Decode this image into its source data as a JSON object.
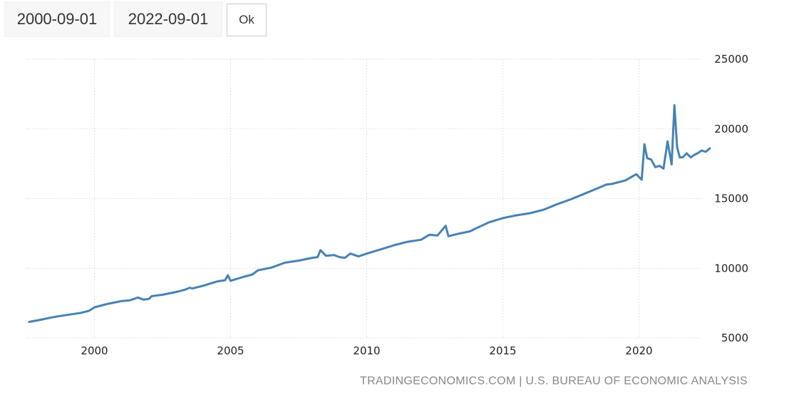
{
  "controls": {
    "start_date": "2000-09-01",
    "end_date": "2022-09-01",
    "ok_label": "Ok"
  },
  "source_text": "TRADINGECONOMICS.COM | U.S. BUREAU OF ECONOMIC ANALYSIS",
  "colors": {
    "line": "#4682b4",
    "grid": "#e2e2e2"
  },
  "chart_data": {
    "type": "line",
    "title": "",
    "xlabel": "",
    "ylabel": "",
    "y_axis_position": "right",
    "grid": true,
    "xlim": [
      1997.5,
      2022.7
    ],
    "ylim": [
      5000,
      25000
    ],
    "x_ticks": [
      2000,
      2005,
      2010,
      2015,
      2020
    ],
    "y_ticks": [
      25000,
      20000,
      15000,
      10000,
      5000
    ],
    "series": [
      {
        "x": [
          1997.6,
          1998.0,
          1998.5,
          1999.0,
          1999.5,
          1999.8,
          2000.0,
          2000.5,
          2001.0,
          2001.3,
          2001.6,
          2001.8,
          2002.0,
          2002.1,
          2002.5,
          2003.0,
          2003.3,
          2003.5,
          2003.6,
          2004.0,
          2004.5,
          2004.8,
          2004.9,
          2005.0,
          2005.5,
          2005.8,
          2006.0,
          2006.5,
          2007.0,
          2007.5,
          2008.0,
          2008.2,
          2008.3,
          2008.5,
          2008.8,
          2009.0,
          2009.2,
          2009.4,
          2009.7,
          2010.0,
          2010.5,
          2011.0,
          2011.5,
          2012.0,
          2012.3,
          2012.6,
          2012.9,
          2013.0,
          2013.3,
          2013.8,
          2014.0,
          2014.5,
          2015.0,
          2015.5,
          2016.0,
          2016.5,
          2017.0,
          2017.5,
          2018.0,
          2018.5,
          2018.8,
          2019.0,
          2019.5,
          2019.9,
          2020.1,
          2020.2,
          2020.3,
          2020.45,
          2020.6,
          2020.75,
          2020.9,
          2021.05,
          2021.2,
          2021.3,
          2021.4,
          2021.45,
          2021.5,
          2021.6,
          2021.75,
          2021.9,
          2022.0,
          2022.15,
          2022.3,
          2022.45,
          2022.6
        ],
        "y": [
          6150,
          6300,
          6500,
          6650,
          6800,
          6950,
          7200,
          7450,
          7650,
          7700,
          7900,
          7750,
          7800,
          8000,
          8100,
          8300,
          8450,
          8600,
          8550,
          8750,
          9050,
          9150,
          9500,
          9100,
          9400,
          9550,
          9850,
          10050,
          10400,
          10550,
          10750,
          10800,
          11300,
          10900,
          10950,
          10800,
          10750,
          11050,
          10850,
          11050,
          11350,
          11650,
          11900,
          12050,
          12400,
          12350,
          13050,
          12300,
          12450,
          12650,
          12850,
          13300,
          13600,
          13800,
          13950,
          14200,
          14600,
          14950,
          15350,
          15750,
          16000,
          16050,
          16300,
          16750,
          16350,
          18900,
          17900,
          17800,
          17250,
          17350,
          17150,
          19100,
          17450,
          21700,
          18700,
          18300,
          17950,
          17950,
          18250,
          17950,
          18100,
          18250,
          18450,
          18350,
          18600
        ]
      }
    ]
  }
}
